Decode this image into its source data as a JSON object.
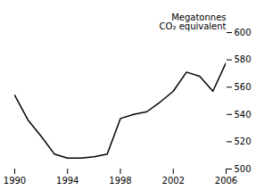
{
  "chart_data": {
    "type": "line",
    "ylabel": "Megatonnes\nCO₂ equivalent",
    "x": [
      1990,
      1991,
      1992,
      1993,
      1994,
      1995,
      1996,
      1997,
      1998,
      1999,
      2000,
      2001,
      2002,
      2003,
      2004,
      2005,
      2006
    ],
    "values": [
      554,
      536,
      524,
      511,
      508,
      508,
      509,
      511,
      537,
      540,
      542,
      549,
      557,
      571,
      568,
      557,
      578
    ],
    "color": "#000000",
    "xlim": [
      1990,
      2006
    ],
    "ylim": [
      500,
      600
    ],
    "xticks": [
      1990,
      1994,
      1998,
      2002,
      2006
    ],
    "yticks": [
      500,
      520,
      540,
      560,
      580,
      600
    ]
  }
}
